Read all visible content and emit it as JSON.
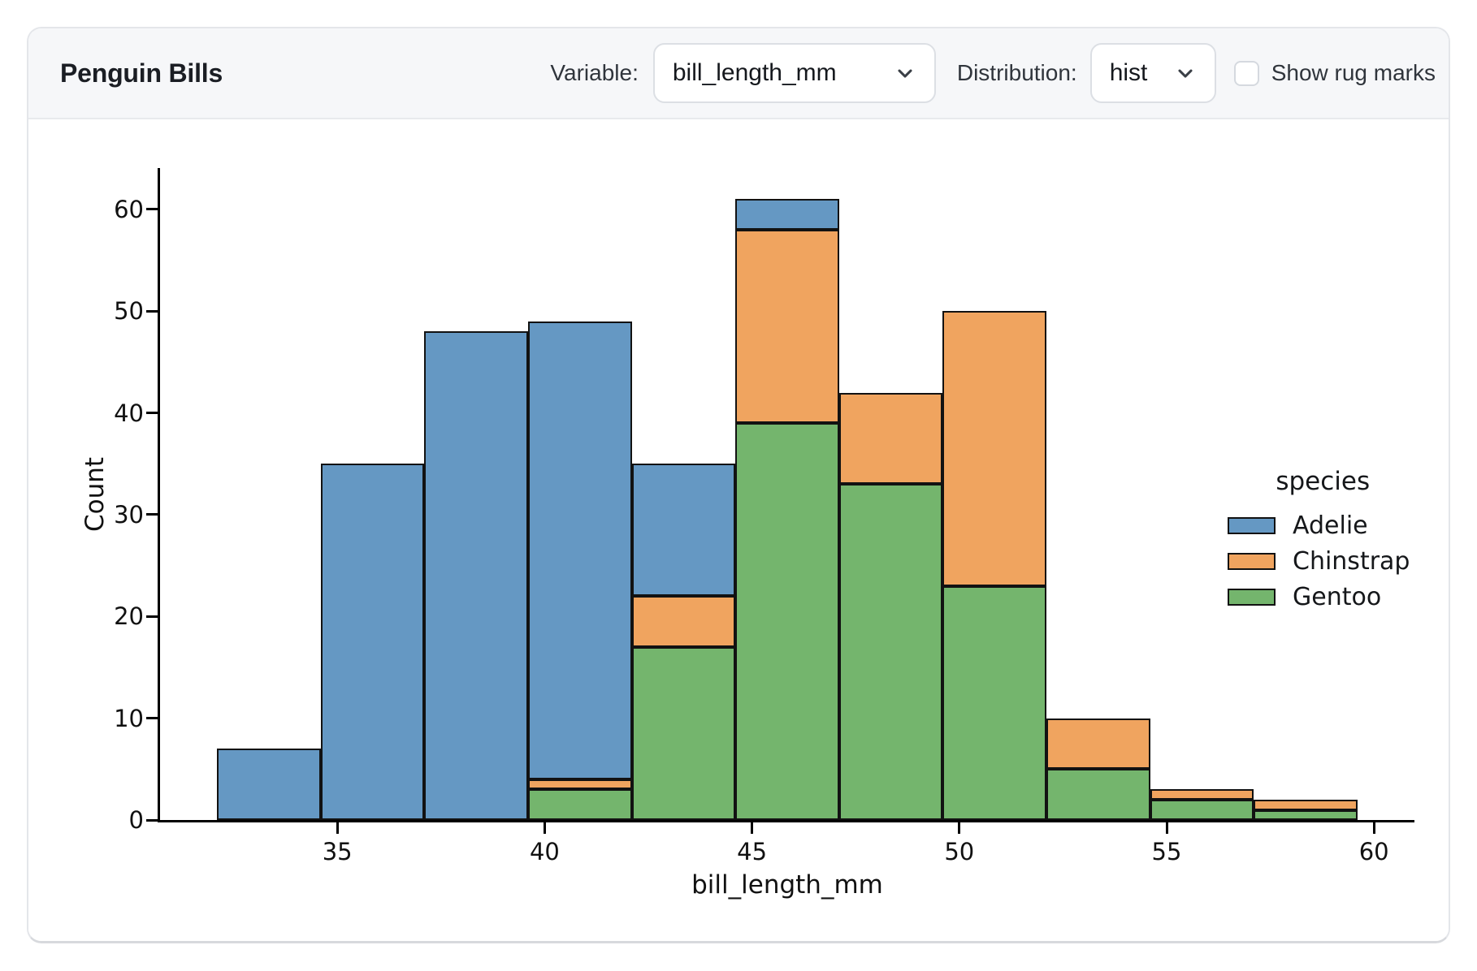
{
  "header": {
    "title": "Penguin Bills",
    "variable_label": "Variable:",
    "variable_value": "bill_length_mm",
    "distribution_label": "Distribution:",
    "distribution_value": "hist",
    "rug_label": "Show rug marks",
    "rug_checked": false
  },
  "icons": {
    "variable_chevron": "chevron-down",
    "distribution_chevron": "chevron-down"
  },
  "chart_data": {
    "type": "bar",
    "subtype": "stacked-histogram",
    "title": "",
    "xlabel": "bill_length_mm",
    "ylabel": "Count",
    "xlim": [
      30.725,
      60.975
    ],
    "ylim": [
      0,
      64.05
    ],
    "xticks": [
      35,
      40,
      45,
      50,
      55,
      60
    ],
    "yticks": [
      0,
      10,
      20,
      30,
      40,
      50,
      60
    ],
    "grid": false,
    "bin_width": 2.5,
    "bin_edges": [
      32.1,
      34.6,
      37.1,
      39.6,
      42.1,
      44.6,
      47.1,
      49.6,
      52.1,
      54.6,
      57.1,
      59.6
    ],
    "stack_order_bottom_to_top": [
      "Gentoo",
      "Chinstrap",
      "Adelie"
    ],
    "series": [
      {
        "name": "Adelie",
        "color": "#6598c3",
        "values": [
          7,
          35,
          48,
          45,
          13,
          3,
          0,
          0,
          0,
          0,
          0
        ]
      },
      {
        "name": "Chinstrap",
        "color": "#f0a45f",
        "values": [
          0,
          0,
          0,
          1,
          5,
          19,
          9,
          27,
          5,
          1,
          1
        ]
      },
      {
        "name": "Gentoo",
        "color": "#74b56d",
        "values": [
          0,
          0,
          0,
          3,
          17,
          39,
          33,
          23,
          5,
          2,
          1
        ]
      }
    ],
    "bar_totals": [
      7,
      35,
      48,
      49,
      35,
      61,
      42,
      50,
      10,
      3,
      2
    ],
    "edge_color": "#121212",
    "legend": {
      "title": "species",
      "position": "center right",
      "entries": [
        "Adelie",
        "Chinstrap",
        "Gentoo"
      ]
    }
  }
}
